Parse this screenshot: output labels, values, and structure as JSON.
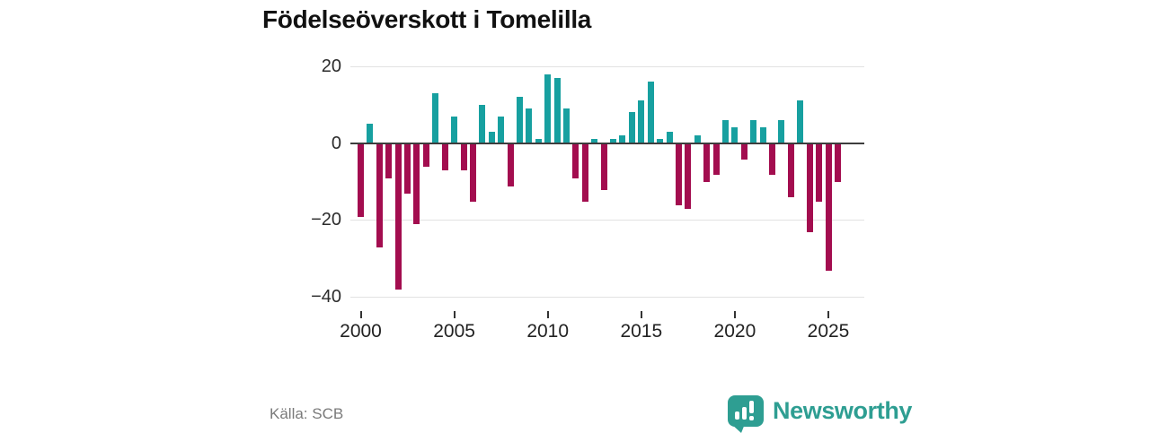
{
  "title": "Födelseöverskott i Tomelilla",
  "source": "Källa: SCB",
  "branding": {
    "name": "Newsworthy",
    "color": "#2e9e92"
  },
  "chart_data": {
    "type": "bar",
    "title": "Födelseöverskott i Tomelilla",
    "x": [
      "2000 H1",
      "2000 H2",
      "2001 H1",
      "2001 H2",
      "2002 H1",
      "2002 H2",
      "2003 H1",
      "2003 H2",
      "2004 H1",
      "2004 H2",
      "2005 H1",
      "2005 H2",
      "2006 H1",
      "2006 H2",
      "2007 H1",
      "2007 H2",
      "2008 H1",
      "2008 H2",
      "2009 H1",
      "2009 H2",
      "2010 H1",
      "2010 H2",
      "2011 H1",
      "2011 H2",
      "2012 H1",
      "2012 H2",
      "2013 H1",
      "2013 H2",
      "2014 H1",
      "2014 H2",
      "2015 H1",
      "2015 H2",
      "2016 H1",
      "2016 H2",
      "2017 H1",
      "2017 H2",
      "2018 H1",
      "2018 H2",
      "2019 H1",
      "2019 H2",
      "2020 H1",
      "2020 H2",
      "2021 H1",
      "2021 H2",
      "2022 H1",
      "2022 H2",
      "2023 H1",
      "2023 H2",
      "2024 H1",
      "2024 H2",
      "2025 H1",
      "2025 H2"
    ],
    "values": [
      -19,
      5,
      -27,
      -9,
      -38,
      -13,
      -21,
      -6,
      13,
      -7,
      7,
      -7,
      -15,
      10,
      3,
      7,
      -11,
      12,
      9,
      1,
      18,
      17,
      9,
      -9,
      -15,
      1,
      -12,
      1,
      2,
      8,
      11,
      16,
      1,
      3,
      -16,
      -17,
      2,
      -10,
      -8,
      6,
      4,
      -4,
      6,
      4,
      -8,
      6,
      -14,
      11,
      -23,
      -15,
      -33,
      -10
    ],
    "xlabel": "",
    "ylabel": "",
    "y_ticks": [
      20,
      0,
      -20,
      -40
    ],
    "y_tick_labels": [
      "20",
      "0",
      "−20",
      "−40"
    ],
    "x_tick_labels": [
      "2000",
      "2005",
      "2010",
      "2015",
      "2020",
      "2025"
    ],
    "ylim": [
      -42,
      22
    ],
    "grid": "horizontal",
    "legend": "none",
    "colors": {
      "positive": "#17a0a0",
      "negative": "#a30d4f"
    }
  }
}
